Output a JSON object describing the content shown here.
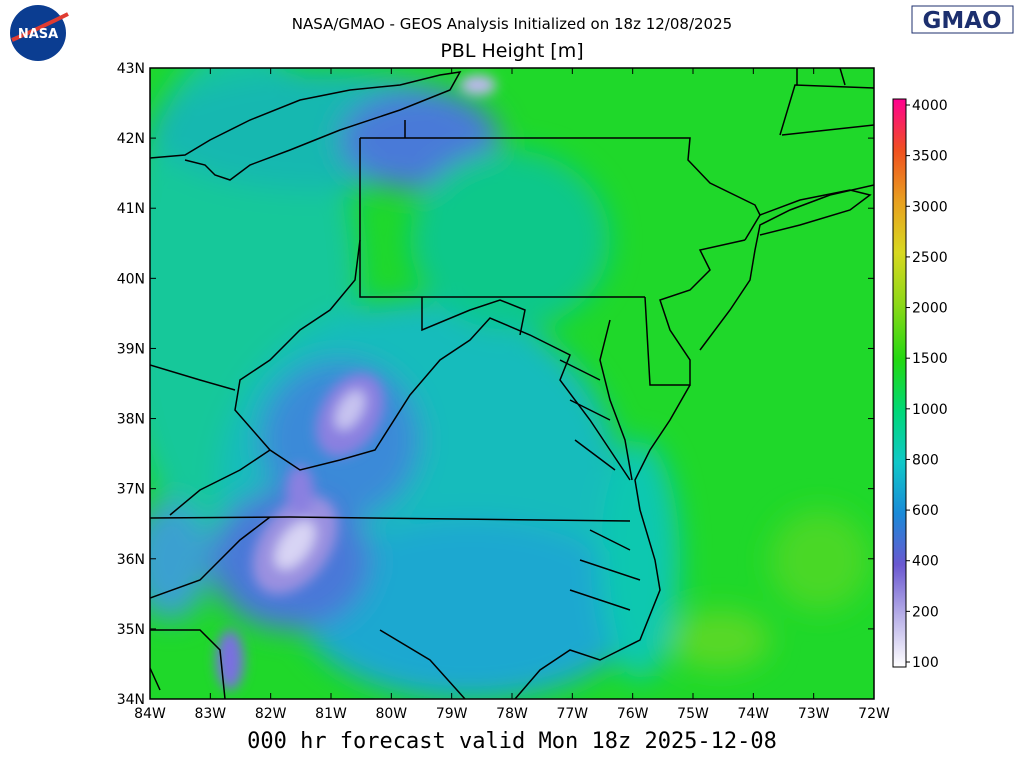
{
  "header": {
    "agency_logo": "NASA",
    "title": "NASA/GMAO - GEOS Analysis Initialized on 18z 12/08/2025",
    "subtitle": "PBL Height [m]",
    "brand_logo": "GMAO"
  },
  "map": {
    "lon_labels": [
      "84W",
      "83W",
      "82W",
      "81W",
      "80W",
      "79W",
      "78W",
      "77W",
      "76W",
      "75W",
      "74W",
      "73W",
      "72W"
    ],
    "lat_labels": [
      "43N",
      "42N",
      "41N",
      "40N",
      "39N",
      "38N",
      "37N",
      "36N",
      "35N",
      "34N"
    ]
  },
  "colorbar": {
    "ticks": [
      4000,
      3500,
      3000,
      2500,
      2000,
      1500,
      1000,
      800,
      600,
      400,
      200,
      100
    ]
  },
  "footer": "000 hr forecast valid Mon 18z 2025-12-08"
}
